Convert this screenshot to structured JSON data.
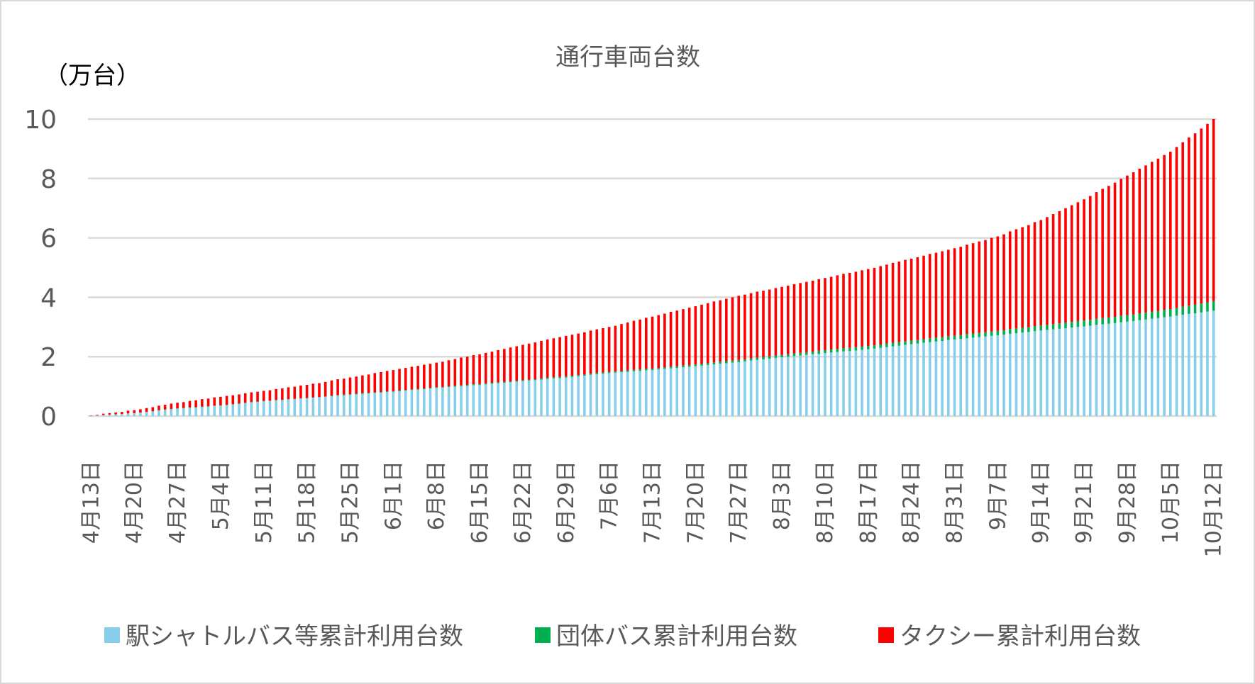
{
  "chart_data": {
    "type": "bar",
    "stacked": true,
    "title": "通行車両台数",
    "ylabel": "（万台）",
    "xlabel": "",
    "ylim": [
      0,
      10
    ],
    "y_ticks": [
      0,
      2,
      4,
      6,
      8,
      10
    ],
    "grid": "horizontal",
    "legend_position": "bottom",
    "x_tick_labels": [
      "4月13日",
      "4月20日",
      "4月27日",
      "5月4日",
      "5月11日",
      "5月18日",
      "5月25日",
      "6月1日",
      "6月8日",
      "6月15日",
      "6月22日",
      "6月29日",
      "7月6日",
      "7月13日",
      "7月20日",
      "7月27日",
      "8月3日",
      "8月10日",
      "8月17日",
      "8月24日",
      "8月31日",
      "9月7日",
      "9月14日",
      "9月21日",
      "9月28日",
      "10月5日",
      "10月12日"
    ],
    "series": [
      {
        "name": "駅シャトルバス等累計利用台数",
        "color": "#87CEEB",
        "values": [
          0.01,
          0.02,
          0.04,
          0.05,
          0.06,
          0.07,
          0.09,
          0.1,
          0.12,
          0.14,
          0.16,
          0.19,
          0.21,
          0.23,
          0.25,
          0.26,
          0.28,
          0.29,
          0.31,
          0.32,
          0.34,
          0.35,
          0.37,
          0.39,
          0.41,
          0.44,
          0.46,
          0.48,
          0.5,
          0.51,
          0.53,
          0.54,
          0.56,
          0.57,
          0.59,
          0.6,
          0.62,
          0.63,
          0.65,
          0.67,
          0.69,
          0.7,
          0.72,
          0.73,
          0.75,
          0.76,
          0.78,
          0.79,
          0.81,
          0.82,
          0.84,
          0.86,
          0.88,
          0.89,
          0.91,
          0.93,
          0.95,
          0.96,
          0.98,
          0.99,
          1.01,
          1.02,
          1.04,
          1.05,
          1.07,
          1.09,
          1.11,
          1.12,
          1.14,
          1.16,
          1.18,
          1.2,
          1.21,
          1.23,
          1.25,
          1.27,
          1.28,
          1.3,
          1.32,
          1.34,
          1.36,
          1.39,
          1.41,
          1.43,
          1.45,
          1.46,
          1.48,
          1.49,
          1.51,
          1.52,
          1.54,
          1.55,
          1.57,
          1.59,
          1.61,
          1.62,
          1.64,
          1.66,
          1.68,
          1.7,
          1.72,
          1.74,
          1.76,
          1.78,
          1.8,
          1.82,
          1.84,
          1.87,
          1.89,
          1.91,
          1.93,
          1.96,
          1.98,
          2.0,
          2.02,
          2.04,
          2.06,
          2.08,
          2.1,
          2.12,
          2.14,
          2.16,
          2.18,
          2.19,
          2.21,
          2.23,
          2.25,
          2.27,
          2.3,
          2.32,
          2.35,
          2.37,
          2.4,
          2.42,
          2.44,
          2.47,
          2.49,
          2.51,
          2.53,
          2.56,
          2.58,
          2.6,
          2.62,
          2.64,
          2.66,
          2.68,
          2.7,
          2.72,
          2.74,
          2.77,
          2.79,
          2.81,
          2.83,
          2.86,
          2.88,
          2.9,
          2.92,
          2.94,
          2.96,
          2.98,
          3.0,
          3.02,
          3.04,
          3.07,
          3.09,
          3.11,
          3.13,
          3.16,
          3.18,
          3.2,
          3.23,
          3.25,
          3.28,
          3.3,
          3.33,
          3.35,
          3.38,
          3.41,
          3.44,
          3.46,
          3.49,
          3.52,
          3.55
        ]
      },
      {
        "name": "団体バス累計利用台数",
        "color": "#00B050",
        "values": [
          0,
          0,
          0,
          0,
          0,
          0,
          0,
          0,
          0,
          0,
          0,
          0.01,
          0.01,
          0.01,
          0.01,
          0.01,
          0.01,
          0.01,
          0.01,
          0.01,
          0.01,
          0.01,
          0.01,
          0.01,
          0.01,
          0.01,
          0.01,
          0.01,
          0.01,
          0.01,
          0.01,
          0.01,
          0.01,
          0.01,
          0.01,
          0.01,
          0.01,
          0.01,
          0.01,
          0.02,
          0.02,
          0.02,
          0.02,
          0.02,
          0.02,
          0.02,
          0.02,
          0.02,
          0.02,
          0.02,
          0.02,
          0.02,
          0.02,
          0.02,
          0.02,
          0.02,
          0.02,
          0.02,
          0.02,
          0.03,
          0.03,
          0.03,
          0.03,
          0.03,
          0.03,
          0.03,
          0.03,
          0.03,
          0.03,
          0.03,
          0.03,
          0.03,
          0.03,
          0.04,
          0.04,
          0.04,
          0.04,
          0.04,
          0.04,
          0.04,
          0.04,
          0.04,
          0.04,
          0.04,
          0.04,
          0.04,
          0.04,
          0.05,
          0.05,
          0.05,
          0.05,
          0.05,
          0.05,
          0.05,
          0.06,
          0.06,
          0.06,
          0.06,
          0.06,
          0.06,
          0.06,
          0.07,
          0.07,
          0.07,
          0.07,
          0.07,
          0.07,
          0.07,
          0.08,
          0.08,
          0.08,
          0.08,
          0.08,
          0.08,
          0.09,
          0.09,
          0.09,
          0.09,
          0.1,
          0.1,
          0.1,
          0.1,
          0.11,
          0.11,
          0.11,
          0.11,
          0.11,
          0.11,
          0.11,
          0.12,
          0.12,
          0.12,
          0.12,
          0.12,
          0.12,
          0.12,
          0.13,
          0.13,
          0.13,
          0.13,
          0.13,
          0.13,
          0.14,
          0.14,
          0.14,
          0.14,
          0.15,
          0.15,
          0.15,
          0.16,
          0.16,
          0.16,
          0.16,
          0.17,
          0.17,
          0.17,
          0.18,
          0.18,
          0.19,
          0.19,
          0.2,
          0.2,
          0.2,
          0.21,
          0.21,
          0.21,
          0.21,
          0.22,
          0.22,
          0.22,
          0.23,
          0.23,
          0.24,
          0.24,
          0.25,
          0.25,
          0.26,
          0.27,
          0.28,
          0.29,
          0.3,
          0.31,
          0.32
        ]
      },
      {
        "name": "タクシー累計利用台数",
        "color": "#FF0000",
        "values": [
          0.01,
          0.02,
          0.04,
          0.05,
          0.06,
          0.07,
          0.09,
          0.1,
          0.11,
          0.13,
          0.14,
          0.15,
          0.16,
          0.18,
          0.19,
          0.2,
          0.22,
          0.23,
          0.25,
          0.26,
          0.28,
          0.29,
          0.3,
          0.3,
          0.31,
          0.32,
          0.33,
          0.33,
          0.34,
          0.35,
          0.37,
          0.38,
          0.4,
          0.41,
          0.43,
          0.44,
          0.46,
          0.47,
          0.49,
          0.51,
          0.53,
          0.54,
          0.56,
          0.58,
          0.6,
          0.62,
          0.65,
          0.67,
          0.69,
          0.71,
          0.73,
          0.74,
          0.76,
          0.78,
          0.8,
          0.81,
          0.83,
          0.85,
          0.88,
          0.9,
          0.93,
          0.95,
          0.98,
          1.0,
          1.03,
          1.05,
          1.08,
          1.11,
          1.14,
          1.16,
          1.19,
          1.21,
          1.24,
          1.26,
          1.29,
          1.31,
          1.34,
          1.36,
          1.38,
          1.4,
          1.42,
          1.45,
          1.47,
          1.49,
          1.51,
          1.54,
          1.58,
          1.61,
          1.65,
          1.68,
          1.72,
          1.75,
          1.78,
          1.81,
          1.84,
          1.87,
          1.9,
          1.93,
          1.96,
          1.99,
          2.02,
          2.05,
          2.07,
          2.1,
          2.13,
          2.16,
          2.18,
          2.2,
          2.22,
          2.23,
          2.25,
          2.27,
          2.29,
          2.31,
          2.33,
          2.35,
          2.37,
          2.39,
          2.41,
          2.43,
          2.45,
          2.48,
          2.5,
          2.52,
          2.54,
          2.57,
          2.59,
          2.61,
          2.64,
          2.66,
          2.69,
          2.71,
          2.74,
          2.76,
          2.79,
          2.81,
          2.84,
          2.86,
          2.89,
          2.91,
          2.94,
          2.97,
          3.01,
          3.04,
          3.08,
          3.11,
          3.15,
          3.18,
          3.23,
          3.29,
          3.34,
          3.39,
          3.44,
          3.5,
          3.55,
          3.63,
          3.7,
          3.78,
          3.85,
          3.93,
          4.0,
          4.08,
          4.17,
          4.26,
          4.35,
          4.43,
          4.52,
          4.61,
          4.7,
          4.79,
          4.87,
          4.96,
          5.04,
          5.13,
          5.21,
          5.3,
          5.42,
          5.54,
          5.66,
          5.77,
          5.89,
          6.01,
          6.13
        ]
      }
    ],
    "gridline_color": "#D9D9D9"
  }
}
